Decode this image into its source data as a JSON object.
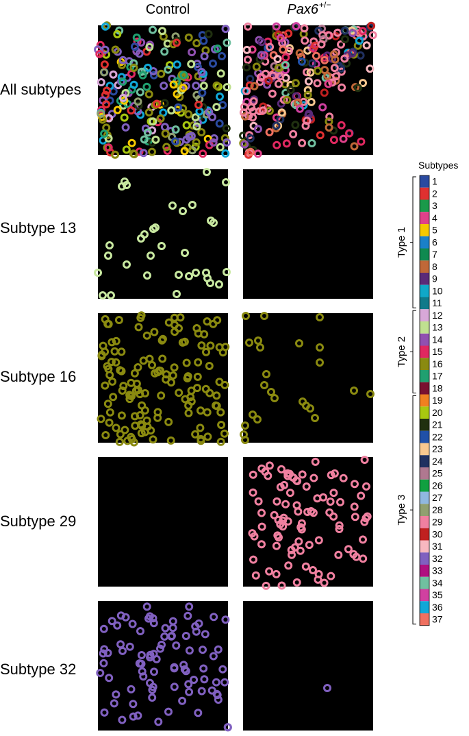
{
  "columns": {
    "control": "Control",
    "mutant_gene": "Pax6",
    "mutant_sup": "+/−"
  },
  "rows": [
    "All subtypes",
    "Subtype 13",
    "Subtype 16",
    "Subtype 29",
    "Subtype 32"
  ],
  "legend": {
    "title": "Subtypes",
    "entries": [
      {
        "n": "1",
        "color": "#2a4aa0"
      },
      {
        "n": "2",
        "color": "#e03030"
      },
      {
        "n": "3",
        "color": "#1a9a4a"
      },
      {
        "n": "4",
        "color": "#e0408a"
      },
      {
        "n": "5",
        "color": "#f5c800"
      },
      {
        "n": "6",
        "color": "#1a80c8"
      },
      {
        "n": "7",
        "color": "#108a50"
      },
      {
        "n": "8",
        "color": "#c06838"
      },
      {
        "n": "9",
        "color": "#5a2a78"
      },
      {
        "n": "10",
        "color": "#10a8c8"
      },
      {
        "n": "11",
        "color": "#107a8a"
      },
      {
        "n": "12",
        "color": "#d8a8d8"
      },
      {
        "n": "13",
        "color": "#c0e090"
      },
      {
        "n": "14",
        "color": "#9050b0"
      },
      {
        "n": "15",
        "color": "#e02860"
      },
      {
        "n": "16",
        "color": "#8a8a10"
      },
      {
        "n": "17",
        "color": "#20a070"
      },
      {
        "n": "18",
        "color": "#7a1030"
      },
      {
        "n": "19",
        "color": "#f08020"
      },
      {
        "n": "20",
        "color": "#a8c810"
      },
      {
        "n": "21",
        "color": "#203010"
      },
      {
        "n": "22",
        "color": "#2050a8"
      },
      {
        "n": "23",
        "color": "#f8c890"
      },
      {
        "n": "24",
        "color": "#203060"
      },
      {
        "n": "25",
        "color": "#b07890"
      },
      {
        "n": "26",
        "color": "#10a040"
      },
      {
        "n": "27",
        "color": "#90b8e0"
      },
      {
        "n": "28",
        "color": "#90a070"
      },
      {
        "n": "29",
        "color": "#f080a0"
      },
      {
        "n": "30",
        "color": "#c02020"
      },
      {
        "n": "31",
        "color": "#f8b8c0"
      },
      {
        "n": "32",
        "color": "#8060c0"
      },
      {
        "n": "33",
        "color": "#b01080"
      },
      {
        "n": "34",
        "color": "#70c0a0"
      },
      {
        "n": "35",
        "color": "#d040a0"
      },
      {
        "n": "36",
        "color": "#10a8d8"
      },
      {
        "n": "37",
        "color": "#f07060"
      }
    ],
    "groups": [
      {
        "label": "Type 1",
        "from": 1,
        "to": 11
      },
      {
        "label": "Type 2",
        "from": 12,
        "to": 18
      },
      {
        "label": "Type 3",
        "from": 19,
        "to": 37
      }
    ]
  }
}
